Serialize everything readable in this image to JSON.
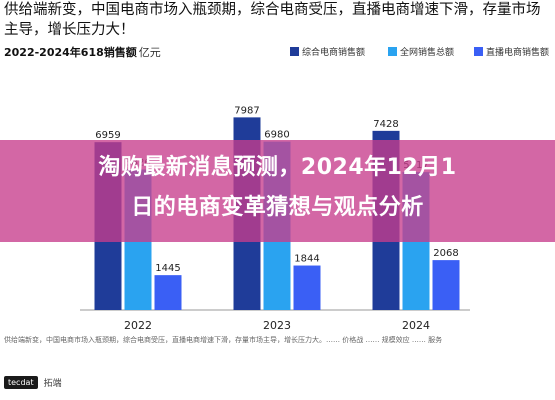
{
  "headline": "供给端新变，中国电商市场入瓶颈期，综合电商受压，直播电商增速下滑，存量市场主导，增长压力大！",
  "overlay_title": {
    "line1": "淘购最新消息预测，2024年12月1",
    "line2": "日的电商变革猜想与观点分析"
  },
  "source_text": "供给端新变，中国电商市场入瓶颈期，综合电商受压，直播电商增速下滑，存量市场主导，增长压力大。…… 价格战 …… 规模效应 …… 服务",
  "footer": {
    "logo": "tecdat",
    "brand": "拓端"
  },
  "colors": {
    "series1": "#1f3c99",
    "series2": "#2aa3f0",
    "series3": "#3a5ff5",
    "overlay": "#c63c8c"
  },
  "chart_data": {
    "type": "bar",
    "title": "2022-2024年618销售额",
    "unit": "亿元",
    "categories": [
      "2022",
      "2023",
      "2024"
    ],
    "series": [
      {
        "name": "综合电商销售额",
        "values": [
          6959,
          7987,
          7428
        ]
      },
      {
        "name": "全网销售总额",
        "values": [
          5826,
          6980,
          5717
        ]
      },
      {
        "name": "直播电商销售额",
        "values": [
          1445,
          1844,
          2068
        ]
      }
    ],
    "ylim": [
      0,
      8500
    ],
    "legend_position": "top-right",
    "grid": false
  }
}
